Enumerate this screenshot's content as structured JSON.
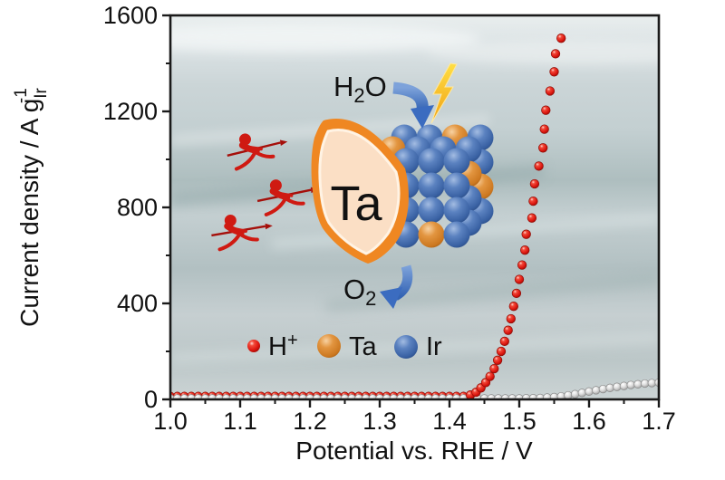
{
  "figure": {
    "background_color": "#ffffff"
  },
  "chart_data": {
    "type": "scatter",
    "title": "",
    "xlabel": "Potential vs. RHE / V",
    "ylabel": {
      "main": "Current density / A g",
      "sub": "Ir",
      "sup": "-1"
    },
    "xlim": [
      1.0,
      1.7
    ],
    "ylim": [
      0,
      1600
    ],
    "grid": false,
    "legend_position": "inside-bottom-left",
    "x_ticks": [
      {
        "v": 1.0,
        "label": "1.0"
      },
      {
        "v": 1.1,
        "label": "1.1"
      },
      {
        "v": 1.2,
        "label": "1.2"
      },
      {
        "v": 1.3,
        "label": "1.3"
      },
      {
        "v": 1.4,
        "label": "1.4"
      },
      {
        "v": 1.5,
        "label": "1.5"
      },
      {
        "v": 1.6,
        "label": "1.6"
      },
      {
        "v": 1.7,
        "label": "1.7"
      }
    ],
    "x_minor_ticks": [
      1.05,
      1.15,
      1.25,
      1.35,
      1.45,
      1.55,
      1.65
    ],
    "y_ticks": [
      {
        "v": 0,
        "label": "0"
      },
      {
        "v": 400,
        "label": "400"
      },
      {
        "v": 800,
        "label": "800"
      },
      {
        "v": 1200,
        "label": "1200"
      },
      {
        "v": 1600,
        "label": "1600"
      }
    ],
    "y_minor_ticks": [
      200,
      600,
      1000,
      1400
    ],
    "series": [
      {
        "name": "gray-spheres",
        "marker_color": "#d6d6d6",
        "marker_edge": "#8a8a8a",
        "flat": {
          "v_start": 1.0,
          "v_end": 1.49,
          "step": 0.01,
          "j": 4
        },
        "points": [
          [
            1.5,
            4
          ],
          [
            1.51,
            5
          ],
          [
            1.52,
            5
          ],
          [
            1.53,
            6
          ],
          [
            1.54,
            8
          ],
          [
            1.55,
            10
          ],
          [
            1.56,
            13
          ],
          [
            1.57,
            17
          ],
          [
            1.58,
            22
          ],
          [
            1.59,
            27
          ],
          [
            1.6,
            33
          ],
          [
            1.61,
            38
          ],
          [
            1.62,
            43
          ],
          [
            1.63,
            48
          ],
          [
            1.64,
            52
          ],
          [
            1.65,
            56
          ],
          [
            1.66,
            60
          ],
          [
            1.67,
            63
          ],
          [
            1.68,
            66
          ],
          [
            1.69,
            68
          ],
          [
            1.7,
            70
          ]
        ]
      },
      {
        "name": "red-spheres",
        "marker_color": "#e02015",
        "marker_edge": "#8f0d06",
        "flat": {
          "v_start": 1.0,
          "v_end": 1.42,
          "step": 0.01,
          "j": 14
        },
        "points": [
          [
            1.43,
            18
          ],
          [
            1.438,
            30
          ],
          [
            1.445,
            48
          ],
          [
            1.452,
            70
          ],
          [
            1.458,
            96
          ],
          [
            1.464,
            128
          ],
          [
            1.469,
            163
          ],
          [
            1.474,
            200
          ],
          [
            1.479,
            242
          ],
          [
            1.484,
            288
          ],
          [
            1.488,
            336
          ],
          [
            1.492,
            388
          ],
          [
            1.496,
            442
          ],
          [
            1.5,
            500
          ],
          [
            1.504,
            560
          ],
          [
            1.508,
            622
          ],
          [
            1.51,
            688
          ],
          [
            1.518,
            756
          ],
          [
            1.52,
            826
          ],
          [
            1.522,
            898
          ],
          [
            1.528,
            972
          ],
          [
            1.534,
            1048
          ],
          [
            1.536,
            1126
          ],
          [
            1.538,
            1205
          ],
          [
            1.544,
            1285
          ],
          [
            1.55,
            1365
          ],
          [
            1.552,
            1440
          ],
          [
            1.56,
            1505
          ]
        ]
      }
    ]
  },
  "illustration": {
    "h2o_label": {
      "base": "H",
      "sub": "2",
      "tail": "O"
    },
    "o2_label": {
      "base": "O",
      "sub": "2"
    },
    "shield_label": "Ta",
    "shield_border_color": "#ef8722",
    "shield_fill_color": "#fbdfc5",
    "shield_label_color": "#ee8c35",
    "lightning_color": "#f7b91c",
    "arrow_color": "#4878c8",
    "attacker_color": "#cf1a12",
    "cube": {
      "grid": 4,
      "ir_color": "#3a62a4",
      "ta_color": "#cc7820",
      "ta_sites": [
        [
          2,
          0,
          2
        ],
        [
          3,
          2,
          2
        ],
        [
          0,
          0,
          1
        ],
        [
          3,
          1,
          1
        ],
        [
          0,
          2,
          0
        ],
        [
          2,
          3,
          0
        ]
      ]
    }
  },
  "legend": {
    "items": [
      {
        "label": "H",
        "sup": "+",
        "color": "#e02015"
      },
      {
        "label": "Ta",
        "sup": "",
        "color": "#d88530"
      },
      {
        "label": "Ir",
        "sup": "",
        "color": "#4a74b8"
      }
    ]
  }
}
